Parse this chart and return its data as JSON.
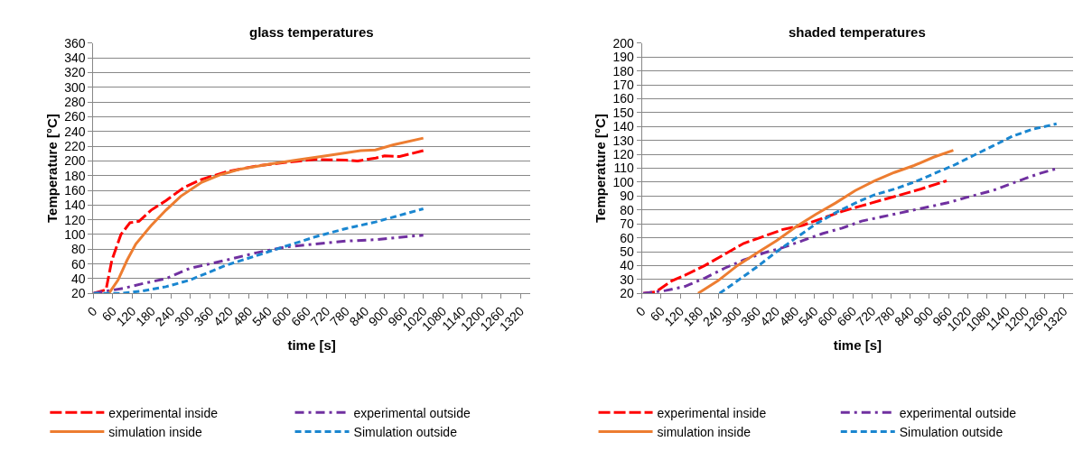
{
  "chart_data": [
    {
      "type": "line",
      "title": "glass temperatures",
      "xlabel": "time [s]",
      "ylabel": "Temperature [°C]",
      "xlim": [
        0,
        1350
      ],
      "xticks": [
        0,
        60,
        120,
        180,
        240,
        300,
        360,
        420,
        480,
        540,
        600,
        660,
        720,
        780,
        840,
        900,
        960,
        1020,
        1080,
        1140,
        1200,
        1260,
        1320
      ],
      "ylim": [
        20,
        360
      ],
      "yticks": [
        20,
        40,
        60,
        80,
        100,
        120,
        140,
        160,
        180,
        200,
        220,
        240,
        260,
        280,
        300,
        320,
        340,
        360
      ],
      "grid": "y",
      "legend": "bottom",
      "series": [
        {
          "name": "experimental inside",
          "color": "#ff0000",
          "line_style": "dashed",
          "x": [
            0,
            39,
            57,
            85,
            113,
            141,
            178,
            224,
            280,
            335,
            409,
            502,
            594,
            687,
            780,
            817,
            873,
            900,
            947,
            1020
          ],
          "values": [
            20,
            25,
            65,
            100,
            116,
            118,
            133,
            146,
            164,
            175,
            185,
            193,
            198,
            202,
            201,
            200,
            204,
            207,
            206,
            214
          ]
        },
        {
          "name": "experimental outside",
          "color": "#7030a0",
          "line_style": "dashdot",
          "x": [
            0,
            94,
            150,
            224,
            298,
            409,
            502,
            594,
            687,
            780,
            872,
            965,
            1020
          ],
          "values": [
            20,
            27,
            33,
            40,
            54,
            65,
            75,
            83,
            87,
            91,
            93,
            97,
            99
          ]
        },
        {
          "name": "simulation inside",
          "color": "#ed7d31",
          "line_style": "solid",
          "x": [
            48,
            76,
            104,
            131,
            178,
            224,
            270,
            335,
            391,
            455,
            548,
            641,
            733,
            826,
            872,
            928,
            1020
          ],
          "values": [
            20,
            38,
            65,
            87,
            112,
            133,
            152,
            171,
            181,
            189,
            196,
            202,
            208,
            214,
            215,
            222,
            231
          ]
        },
        {
          "name": "Simulation outside",
          "color": "#1a86d0",
          "line_style": "dotted",
          "x": [
            0,
            85,
            150,
            224,
            298,
            409,
            502,
            594,
            687,
            780,
            872,
            1020
          ],
          "values": [
            20,
            20,
            23,
            29,
            38,
            58,
            71,
            84,
            97,
            108,
            117,
            135
          ]
        }
      ]
    },
    {
      "type": "line",
      "title": "shaded temperatures",
      "xlabel": "time [s]",
      "ylabel": "Temperature [°C]",
      "xlim": [
        0,
        1350
      ],
      "xticks": [
        0,
        60,
        120,
        180,
        240,
        300,
        360,
        420,
        480,
        540,
        600,
        660,
        720,
        780,
        840,
        900,
        960,
        1020,
        1080,
        1140,
        1200,
        1260,
        1320
      ],
      "ylim": [
        20,
        200
      ],
      "yticks": [
        20,
        30,
        40,
        50,
        60,
        70,
        80,
        90,
        100,
        110,
        120,
        130,
        140,
        150,
        160,
        170,
        180,
        190,
        200
      ],
      "grid": "y",
      "legend": "bottom",
      "series": [
        {
          "name": "experimental inside",
          "color": "#ff0000",
          "line_style": "dashed",
          "x": [
            4,
            43,
            94,
            135,
            197,
            258,
            319,
            381,
            442,
            504,
            565,
            627,
            688,
            749,
            811,
            872,
            954
          ],
          "values": [
            20,
            21,
            29,
            33,
            40,
            48,
            56,
            61,
            66,
            69,
            74,
            79,
            83,
            87,
            91,
            95,
            101
          ]
        },
        {
          "name": "experimental outside",
          "color": "#7030a0",
          "line_style": "dashdot",
          "x": [
            4,
            74,
            135,
            197,
            258,
            319,
            381,
            442,
            504,
            565,
            627,
            688,
            749,
            811,
            872,
            954,
            1016,
            1098,
            1180,
            1241,
            1302
          ],
          "values": [
            20,
            22,
            25,
            31,
            38,
            44,
            49,
            53,
            58,
            63,
            67,
            72,
            75,
            78,
            81,
            85,
            89,
            94,
            101,
            106,
            110
          ]
        },
        {
          "name": "simulation inside",
          "color": "#ed7d31",
          "line_style": "solid",
          "x": [
            176,
            238,
            299,
            360,
            422,
            483,
            545,
            606,
            668,
            729,
            790,
            852,
            913,
            975
          ],
          "values": [
            20,
            29,
            40,
            49,
            58,
            68,
            77,
            85,
            94,
            101,
            107,
            112,
            118,
            123
          ]
        },
        {
          "name": "Simulation outside",
          "color": "#1a86d0",
          "line_style": "dotted",
          "x": [
            243,
            299,
            360,
            422,
            483,
            545,
            606,
            668,
            729,
            790,
            852,
            913,
            975,
            1036,
            1098,
            1159,
            1221,
            1298
          ],
          "values": [
            20,
            29,
            39,
            50,
            60,
            70,
            78,
            85,
            91,
            95,
            100,
            106,
            112,
            119,
            126,
            133,
            138,
            142
          ]
        }
      ]
    }
  ]
}
